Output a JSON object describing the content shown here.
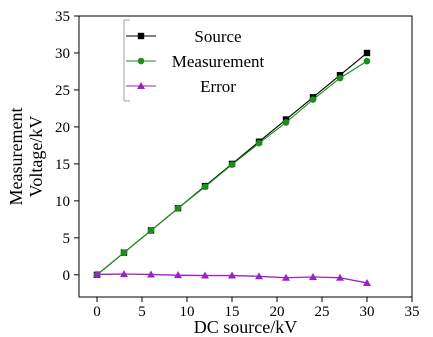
{
  "chart_data": {
    "type": "line",
    "xlabel": "DC source/kV",
    "ylabel_lines": [
      "Measurement",
      "Voltage/kV"
    ],
    "xlim": [
      -2,
      35
    ],
    "ylim": [
      -3,
      35
    ],
    "xticks": [
      0,
      5,
      10,
      15,
      20,
      25,
      30,
      35
    ],
    "yticks": [
      0,
      5,
      10,
      15,
      20,
      25,
      30,
      35
    ],
    "grid": false,
    "legend_position": "top-left",
    "x": [
      0,
      3,
      6,
      9,
      12,
      15,
      18,
      21,
      24,
      27,
      30
    ],
    "series": [
      {
        "name": "Source",
        "color": "#000000",
        "marker": "square",
        "values": [
          0,
          3,
          6,
          9,
          12,
          15,
          18,
          21,
          24,
          27,
          30
        ]
      },
      {
        "name": "Measurement",
        "color": "#1a8f1a",
        "marker": "circle",
        "values": [
          0,
          3,
          6,
          9,
          11.9,
          14.9,
          17.8,
          20.6,
          23.7,
          26.6,
          28.9
        ]
      },
      {
        "name": "Error",
        "color": "#9b22c8",
        "marker": "triangle",
        "values": [
          0.05,
          0.1,
          0.05,
          -0.05,
          -0.1,
          -0.1,
          -0.2,
          -0.4,
          -0.3,
          -0.4,
          -1.1
        ]
      }
    ]
  }
}
